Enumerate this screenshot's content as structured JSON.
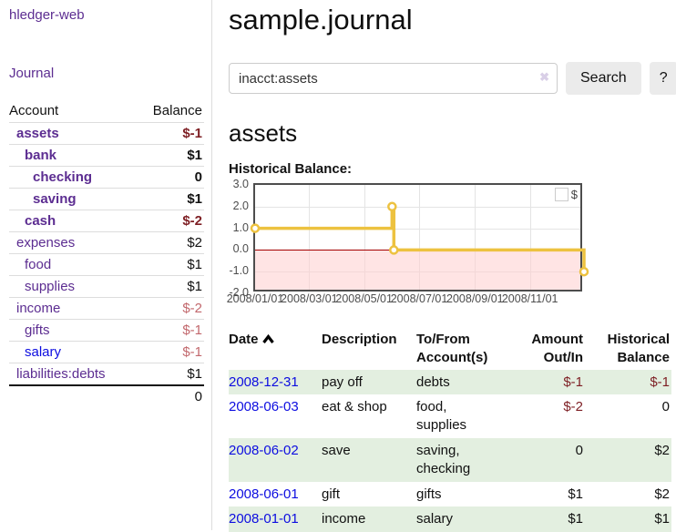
{
  "app": {
    "title": "hledger-web",
    "nav_journal": "Journal"
  },
  "sidebar": {
    "account_header": "Account",
    "balance_header": "Balance",
    "rows": [
      {
        "name": "assets",
        "depth": 0,
        "bold": true,
        "balance": "$-1"
      },
      {
        "name": "bank",
        "depth": 1,
        "bold": true,
        "balance": "$1"
      },
      {
        "name": "checking",
        "depth": 2,
        "bold": true,
        "balance": "0"
      },
      {
        "name": "saving",
        "depth": 2,
        "bold": true,
        "balance": "$1"
      },
      {
        "name": "cash",
        "depth": 1,
        "bold": true,
        "balance": "$-2"
      },
      {
        "name": "expenses",
        "depth": 0,
        "bold": false,
        "balance": "$2"
      },
      {
        "name": "food",
        "depth": 1,
        "bold": false,
        "balance": "$1"
      },
      {
        "name": "supplies",
        "depth": 1,
        "bold": false,
        "balance": "$1"
      },
      {
        "name": "income",
        "depth": 0,
        "bold": false,
        "balance": "$-2"
      },
      {
        "name": "gifts",
        "depth": 1,
        "bold": false,
        "balance": "$-1"
      },
      {
        "name": "salary",
        "depth": 1,
        "bold": false,
        "balance": "$-1",
        "blue": true
      },
      {
        "name": "liabilities:debts",
        "depth": 0,
        "bold": false,
        "balance": "$1"
      }
    ],
    "total": "0"
  },
  "main": {
    "title": "sample.journal",
    "search": {
      "value": "inacct:assets",
      "clear_icon": "✖",
      "button_label": "Search",
      "help_label": "?"
    },
    "account_heading": "assets",
    "chart_label": "Historical Balance:"
  },
  "chart_data": {
    "type": "line",
    "title": "Historical Balance:",
    "step": true,
    "series": [
      {
        "name": "$",
        "color": "#edc240",
        "points": [
          [
            "2008-01-01",
            1
          ],
          [
            "2008-06-01",
            2
          ],
          [
            "2008-06-03",
            0
          ],
          [
            "2008-12-31",
            -1
          ]
        ]
      }
    ],
    "x_range": [
      "2008-01-01",
      "2008-12-31"
    ],
    "ylim": [
      -2,
      3
    ],
    "y_ticks": [
      "3.0",
      "2.0",
      "1.0",
      "0.0",
      "-1.0",
      "-2.0"
    ],
    "x_ticks": [
      "2008/01/01",
      "2008/03/01",
      "2008/05/01",
      "2008/07/01",
      "2008/09/01",
      "2008/11/01"
    ],
    "legend": {
      "label": "$",
      "position": "top-right"
    },
    "grid": true,
    "negative_region_color": "rgba(255,205,205,0.55)",
    "zero_line_color": "#a40000",
    "border_color": "#4d4d4d"
  },
  "transactions": {
    "headers": {
      "date": "Date",
      "description": "Description",
      "tofrom": "To/From Account(s)",
      "amount": "Amount Out/In",
      "historical": "Historical Balance"
    },
    "rows": [
      {
        "date": "2008-12-31",
        "description": "pay off",
        "accounts": "debts",
        "amount": "$-1",
        "historical": "$-1",
        "highlight": true
      },
      {
        "date": "2008-06-03",
        "description": "eat & shop",
        "accounts": "food, supplies",
        "amount": "$-2",
        "historical": "0",
        "highlight": false
      },
      {
        "date": "2008-06-02",
        "description": "save",
        "accounts": "saving, checking",
        "amount": "0",
        "historical": "$2",
        "highlight": true
      },
      {
        "date": "2008-06-01",
        "description": "gift",
        "accounts": "gifts",
        "amount": "$1",
        "historical": "$2",
        "highlight": false
      },
      {
        "date": "2008-01-01",
        "description": "income",
        "accounts": "salary",
        "amount": "$1",
        "historical": "$1",
        "highlight": true
      }
    ]
  }
}
